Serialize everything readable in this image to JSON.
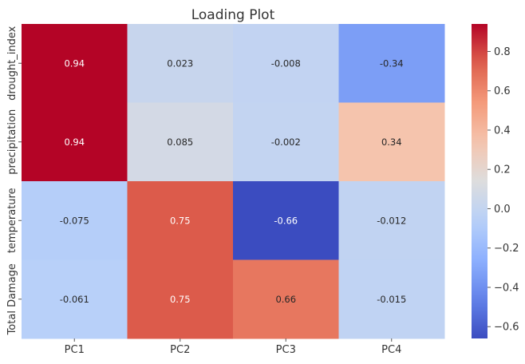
{
  "chart_data": {
    "type": "heatmap",
    "title": "Loading Plot",
    "x_categories": [
      "PC1",
      "PC2",
      "PC3",
      "PC4"
    ],
    "y_categories": [
      "drought_index",
      "precipitation",
      "temperature",
      "Total Damage"
    ],
    "values": [
      [
        0.94,
        0.023,
        -0.008,
        -0.34
      ],
      [
        0.94,
        0.085,
        -0.002,
        0.34
      ],
      [
        -0.075,
        0.75,
        -0.66,
        -0.012
      ],
      [
        -0.061,
        0.75,
        0.66,
        -0.015
      ]
    ],
    "value_labels": [
      [
        "0.94",
        "0.023",
        "-0.008",
        "-0.34"
      ],
      [
        "0.94",
        "0.085",
        "-0.002",
        "0.34"
      ],
      [
        "-0.075",
        "0.75",
        "-0.66",
        "-0.012"
      ],
      [
        "-0.061",
        "0.75",
        "0.66",
        "-0.015"
      ]
    ],
    "colormap": "coolwarm",
    "vmin": -0.66,
    "vmax": 0.94,
    "colorbar_ticks": [
      0.8,
      0.6,
      0.4,
      0.2,
      0.0,
      -0.2,
      -0.4,
      -0.6
    ],
    "colorbar_tick_labels": [
      "0.8",
      "0.6",
      "0.4",
      "0.2",
      "0.0",
      "−0.2",
      "−0.4",
      "−0.6"
    ],
    "grid": false,
    "legend": "colorbar-right"
  }
}
